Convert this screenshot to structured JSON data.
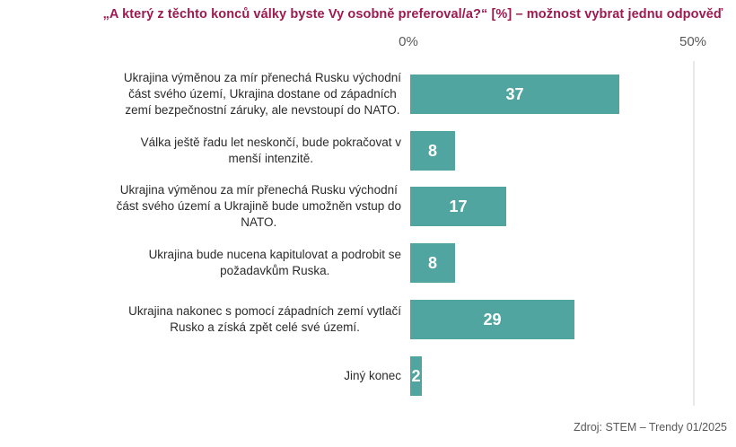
{
  "title": "„A který z těchto konců války byste Vy osobně preferoval/a?“ [%] – možnost vybrat jednu odpověď",
  "axis": {
    "tick_0": "0%",
    "tick_50": "50%"
  },
  "source": "Zdroj: STEM – Trendy 01/2025",
  "colors": {
    "title_text": "#9C1A50",
    "bar_fill": "#50A5A0",
    "bar_value_text": "#FFFFFF",
    "category_label_text": "#2B2B2B",
    "axis_tick_text": "#595959",
    "gridline": "#E8E8E8",
    "background": "#FFFFFF"
  },
  "rows": [
    {
      "label": "Ukrajina výměnou za mír přenechá Rusku východní\nčást svého území, Ukrajina dostane od západních\nzemí bezpečnostní záruky, ale nevstoupí do NATO.",
      "value": "37"
    },
    {
      "label": "Válka ještě řadu let neskončí, bude pokračovat v\nmenší intenzitě.",
      "value": "8"
    },
    {
      "label": "Ukrajina výměnou za mír přenechá Rusku východní\nčást svého území a Ukrajině bude umožněn vstup do\nNATO.",
      "value": "17"
    },
    {
      "label": "Ukrajina bude nucena kapitulovat a podrobit se\npožadavkům Ruska.",
      "value": "8"
    },
    {
      "label": "Ukrajina nakonec s pomocí západních zemí vytlačí\nRusko a získá zpět celé své území.",
      "value": "29"
    },
    {
      "label": "Jiný konec",
      "value": "2"
    }
  ],
  "chart_data": {
    "type": "bar",
    "orientation": "horizontal",
    "title": "„A který z těchto konců války byste Vy osobně preferoval/a?“ [%] – možnost vybrat jednu odpověď",
    "categories": [
      "Ukrajina výměnou za mír přenechá Rusku východní část svého území, Ukrajina dostane od západních zemí bezpečnostní záruky, ale nevstoupí do NATO.",
      "Válka ještě řadu let neskončí, bude pokračovat v menší intenzitě.",
      "Ukrajina výměnou za mír přenechá Rusku východní část svého území a Ukrajině bude umožněn vstup do NATO.",
      "Ukrajina bude nucena kapitulovat a podrobit se požadavkům Ruska.",
      "Ukrajina nakonec s pomocí západních zemí vytlačí Rusko a získá zpět celé své území.",
      "Jiný konec"
    ],
    "values": [
      37,
      8,
      17,
      8,
      29,
      2
    ],
    "xlabel": "",
    "ylabel": "",
    "xlim": [
      0,
      50
    ],
    "x_ticks": [
      "0%",
      "50%"
    ],
    "unit": "%",
    "grid": "single vertical gridline at 50%",
    "legend": "none",
    "data_labels": "inside bars, white bold",
    "source": "Zdroj: STEM – Trendy 01/2025"
  }
}
